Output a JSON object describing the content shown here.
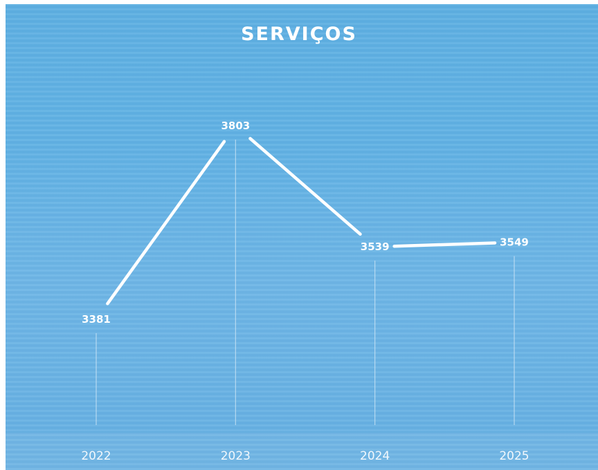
{
  "chart_data": {
    "type": "line",
    "title": "SERVIÇOS",
    "categories": [
      "2022",
      "2023",
      "2024",
      "2025"
    ],
    "values": [
      3381,
      3803,
      3539,
      3549
    ],
    "xlabel": "",
    "ylabel": "",
    "ylim": [
      3000,
      3900
    ],
    "grid": false,
    "legend": "none",
    "colors": {
      "background": "#62b2e4",
      "line": "#ffffff",
      "labels": "#ffffff",
      "drop_lines": "#cfe6f5"
    }
  }
}
